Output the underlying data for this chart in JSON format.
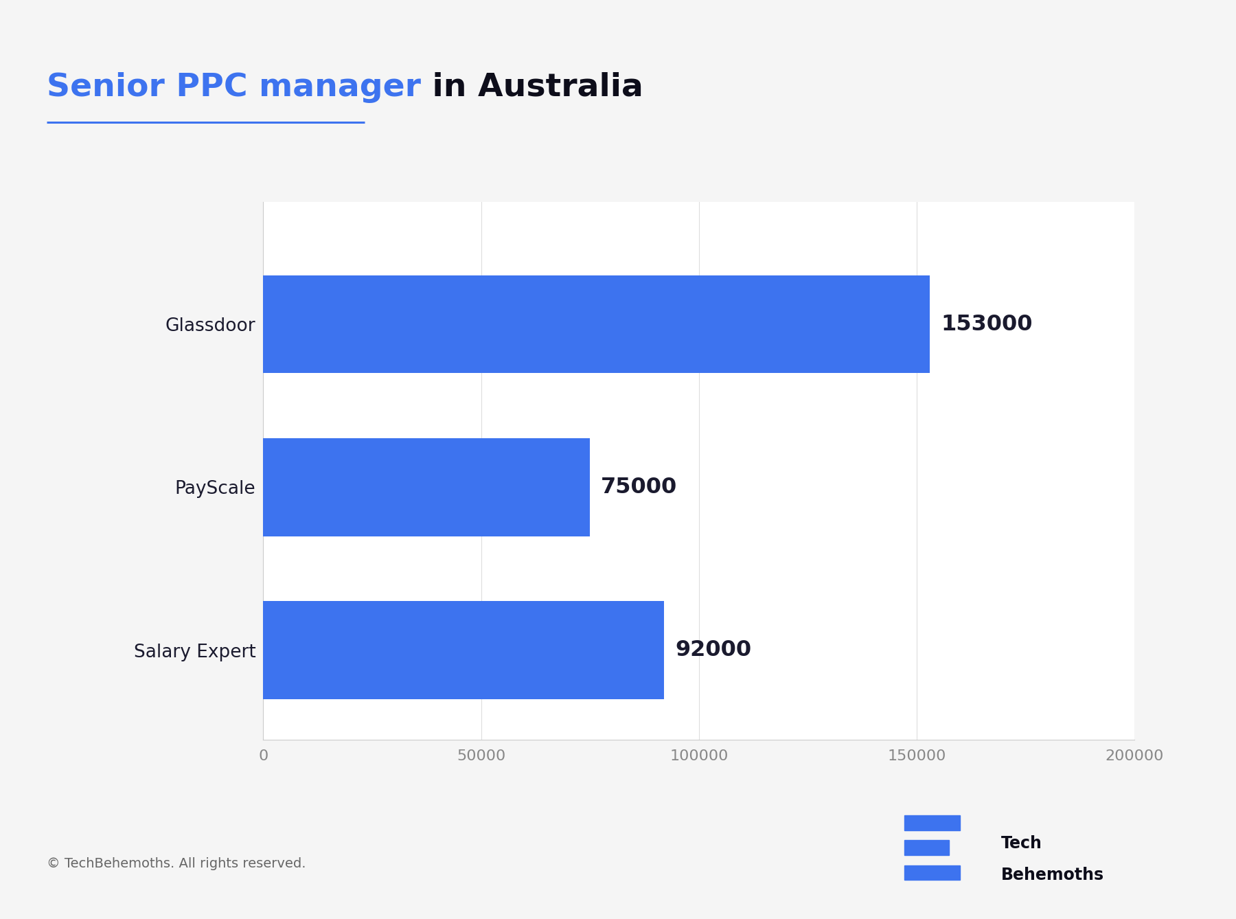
{
  "title_part1": "Senior PPC manager",
  "title_part2": " in Australia",
  "categories": [
    "Glassdoor",
    "PayScale",
    "Salary Expert"
  ],
  "values": [
    153000,
    75000,
    92000
  ],
  "bar_color": "#3D73EF",
  "label_color": "#1a1a2e",
  "title_color1": "#3D73EF",
  "title_color2": "#0d0d1a",
  "bg_outer": "#F5F5F5",
  "bg_chart": "#FFFFFF",
  "xlim": [
    0,
    200000
  ],
  "xticks": [
    0,
    50000,
    100000,
    150000,
    200000
  ],
  "footer_text": "© TechBehemoths. All rights reserved.",
  "brand_text1": "Tech",
  "brand_text2": "Behemoths",
  "accent_bar_color": "#3D73EF",
  "title_fontsize": 34,
  "label_fontsize": 19,
  "value_fontsize": 23,
  "tick_fontsize": 16,
  "footer_fontsize": 14
}
